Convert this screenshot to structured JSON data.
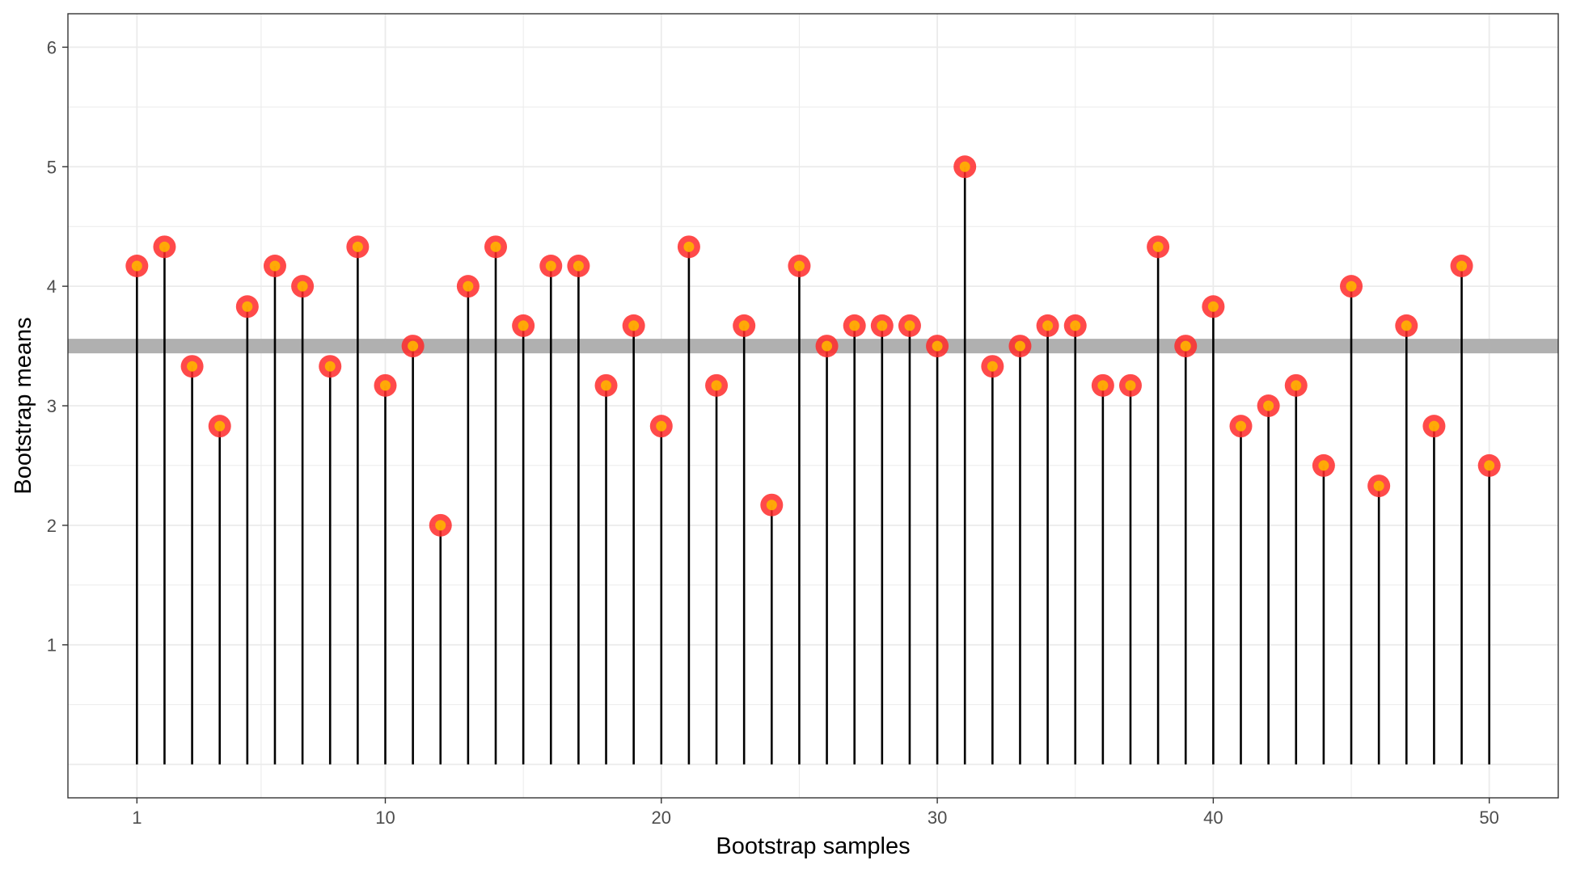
{
  "chart_data": {
    "type": "lollipop",
    "xlabel": "Bootstrap samples",
    "ylabel": "Bootstrap means",
    "xlim": [
      -1.5,
      52.5
    ],
    "ylim": [
      -0.28,
      6.28
    ],
    "x_ticks": [
      1,
      10,
      20,
      30,
      40,
      50
    ],
    "y_ticks": [
      1,
      2,
      3,
      4,
      5,
      6
    ],
    "baseline": 0,
    "reference_line": 3.5,
    "x": [
      1,
      2,
      3,
      4,
      5,
      6,
      7,
      8,
      9,
      10,
      11,
      12,
      13,
      14,
      15,
      16,
      17,
      18,
      19,
      20,
      21,
      22,
      23,
      24,
      25,
      26,
      27,
      28,
      29,
      30,
      31,
      32,
      33,
      34,
      35,
      36,
      37,
      38,
      39,
      40,
      41,
      42,
      43,
      44,
      45,
      46,
      47,
      48,
      49,
      50
    ],
    "values": [
      4.17,
      4.33,
      3.33,
      2.83,
      3.83,
      4.17,
      4.0,
      3.33,
      4.33,
      3.17,
      3.5,
      2.0,
      4.0,
      4.33,
      3.67,
      4.17,
      4.17,
      3.17,
      3.67,
      2.83,
      4.33,
      3.17,
      3.67,
      2.17,
      4.17,
      3.5,
      3.67,
      3.67,
      3.67,
      3.5,
      5.0,
      3.33,
      3.5,
      3.67,
      3.67,
      3.17,
      3.17,
      4.33,
      3.5,
      3.83,
      2.83,
      3.0,
      3.17,
      2.5,
      4.0,
      2.33,
      3.67,
      2.83,
      4.17,
      2.5
    ],
    "grid": true,
    "colors": {
      "stem": "#000000",
      "point_outer": "#ff2a2a",
      "point_inner": "#ffb300",
      "reference": "#b0b0b0",
      "grid": "#ebebeb",
      "panel_border": "#333333"
    }
  }
}
